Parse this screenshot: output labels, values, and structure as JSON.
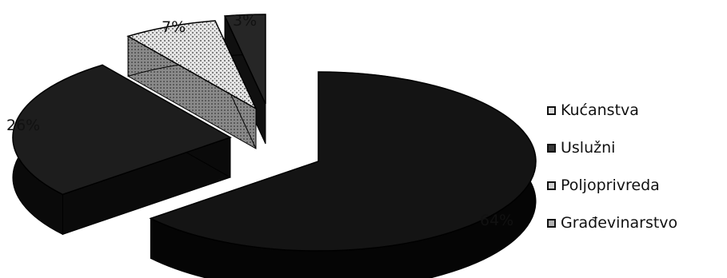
{
  "chart_data": {
    "type": "pie",
    "title": "",
    "categories": [
      "Kućanstva",
      "Uslužni",
      "Poljoprivreda",
      "Građevinarstvo"
    ],
    "values": [
      64,
      26,
      7,
      3
    ],
    "labels": [
      "64%",
      "26%",
      "7%",
      "3%"
    ],
    "legend_position": "right",
    "exploded": true,
    "three_d": true,
    "colors": [
      "#141414",
      "#1d1d1d",
      "#cfcfcf",
      "#262626"
    ]
  }
}
